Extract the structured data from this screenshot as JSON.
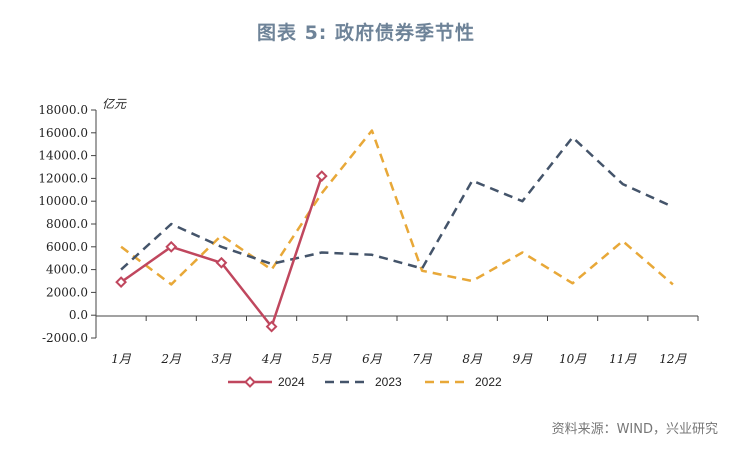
{
  "title": "图表 5:  政府债券季节性",
  "source": "资料来源：WIND，兴业研究",
  "chart_data": {
    "type": "line",
    "ylabel": "亿元",
    "ylim": [
      -2000,
      18000
    ],
    "yticks": [
      -2000,
      0,
      2000,
      4000,
      6000,
      8000,
      10000,
      12000,
      14000,
      16000,
      18000
    ],
    "ytick_labels": [
      "-2000.0",
      "0.0",
      "2000.0",
      "4000.0",
      "6000.0",
      "8000.0",
      "10000.0",
      "12000.0",
      "14000.0",
      "16000.0",
      "18000.0"
    ],
    "categories": [
      "1月",
      "2月",
      "3月",
      "4月",
      "5月",
      "6月",
      "7月",
      "8月",
      "9月",
      "10月",
      "11月",
      "12月"
    ],
    "legend_position": "bottom",
    "series": [
      {
        "name": "2024",
        "color": "#c0475e",
        "dash": "solid",
        "marker": "diamond",
        "values": [
          2900,
          6000,
          4600,
          -1000,
          12200,
          null,
          null,
          null,
          null,
          null,
          null,
          null
        ]
      },
      {
        "name": "2023",
        "color": "#44546a",
        "dash": "dashed",
        "marker": "none",
        "values": [
          4000,
          8000,
          6000,
          4500,
          5500,
          5300,
          4100,
          11800,
          10000,
          15600,
          11500,
          9500
        ]
      },
      {
        "name": "2022",
        "color": "#e8a838",
        "dash": "dashed",
        "marker": "none",
        "values": [
          6000,
          2700,
          7000,
          4000,
          10700,
          16200,
          3900,
          3000,
          5500,
          2800,
          6500,
          2700
        ]
      }
    ]
  }
}
